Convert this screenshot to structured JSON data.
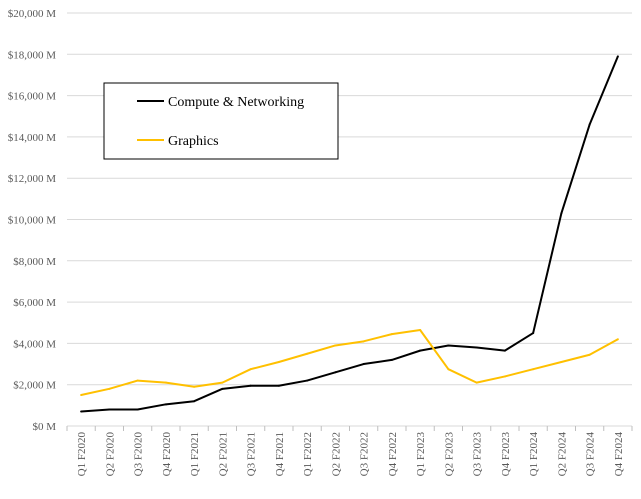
{
  "chart_data": {
    "type": "line",
    "categories": [
      "Q1 F2020",
      "Q2 F2020",
      "Q3 F2020",
      "Q4 F2020",
      "Q1 F2021",
      "Q2 F2021",
      "Q3 F2021",
      "Q4 F2021",
      "Q1 F2022",
      "Q2 F2022",
      "Q3 F2022",
      "Q4 F2022",
      "Q1 F2023",
      "Q2 F2023",
      "Q3 F2023",
      "Q4 F2023",
      "Q1 F2024",
      "Q2 F2024",
      "Q3 F2024",
      "Q4 F2024"
    ],
    "series": [
      {
        "name": "Compute & Networking",
        "color": "#000000",
        "values": [
          700,
          800,
          800,
          1050,
          1200,
          1800,
          1950,
          1950,
          2200,
          2600,
          3000,
          3200,
          3650,
          3900,
          3800,
          3650,
          4500,
          10300,
          14600,
          17900
        ]
      },
      {
        "name": "Graphics",
        "color": "#FFC000",
        "values": [
          1500,
          1800,
          2200,
          2100,
          1900,
          2100,
          2750,
          3100,
          3500,
          3900,
          4100,
          4450,
          4650,
          2750,
          2100,
          2400,
          2750,
          3100,
          3450,
          4200
        ]
      }
    ],
    "yticks": [
      "$0 M",
      "$2,000 M",
      "$4,000 M",
      "$6,000 M",
      "$8,000 M",
      "$10,000 M",
      "$12,000 M",
      "$14,000 M",
      "$16,000 M",
      "$18,000 M",
      "$20,000 M"
    ],
    "ylim": [
      0,
      20000
    ],
    "grid": true,
    "legend": "upper-left inside plot"
  }
}
